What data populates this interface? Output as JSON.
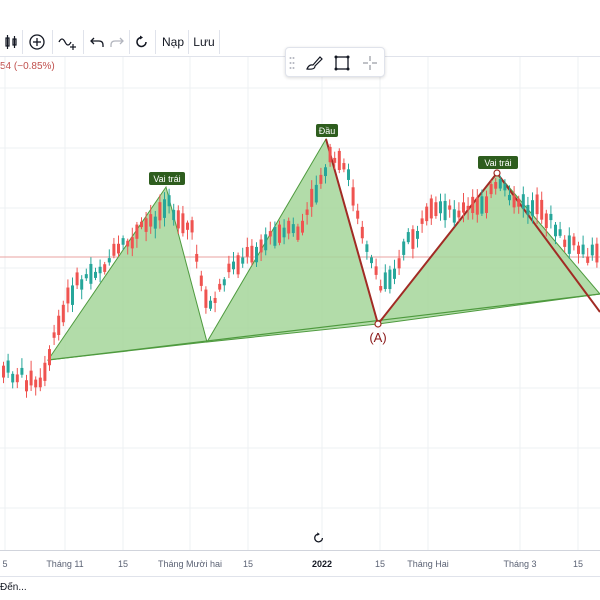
{
  "toolbar": {
    "reload_label": "Nạp",
    "save_label": "Lưu"
  },
  "legend": {
    "change": "54 (−0.85%)"
  },
  "pattern": {
    "left_shoulder": "Vai trái",
    "head": "Đầu",
    "right_shoulder": "Vai trái",
    "point_a": "(A)"
  },
  "xaxis": {
    "labels": [
      "5",
      "Tháng 11",
      "15",
      "Tháng Mười hai",
      "15",
      "2022",
      "15",
      "Tháng Hai",
      "Tháng 3",
      "15"
    ]
  },
  "bottom": {
    "goto_label": "Đến..."
  },
  "colors": {
    "up": "#26a69a",
    "down": "#ef5350",
    "pattern_fill": "#a5d69a",
    "pattern_line": "#2e7d32",
    "neckline_red": "#b71c1c",
    "label_bg": "#2e5d1e"
  },
  "icons": [
    "candles-icon",
    "plus-circle-icon",
    "indicator-icon",
    "undo-icon",
    "redo-icon",
    "refresh-icon",
    "brush-icon",
    "square-icon",
    "crosshair-icon",
    "reset-icon"
  ]
}
